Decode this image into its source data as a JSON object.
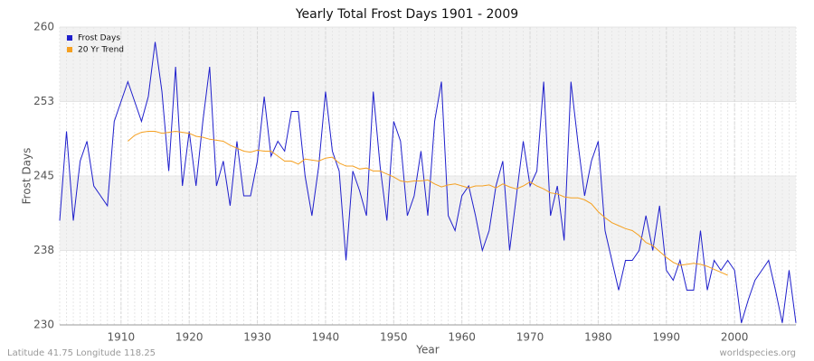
{
  "chart_data": {
    "type": "line",
    "title": "Yearly Total Frost Days 1901 - 2009",
    "x_label": "Year",
    "y_label": "Frost Days",
    "footer_left": "Latitude 41.75 Longitude 118.25",
    "footer_right": "worldspecies.org",
    "legend": "upper left",
    "grid": true,
    "xlim": [
      1901,
      2009
    ],
    "xticks": [
      1910,
      1920,
      1930,
      1940,
      1950,
      1960,
      1970,
      1980,
      1990,
      2000
    ],
    "ylim": [
      230,
      260
    ],
    "yticks": [
      230,
      {
        "value": 237.5,
        "label": "238"
      },
      245,
      {
        "value": 252.5,
        "label": "253"
      },
      260
    ],
    "x": [
      1901,
      1902,
      1903,
      1904,
      1905,
      1906,
      1907,
      1908,
      1909,
      1910,
      1911,
      1912,
      1913,
      1914,
      1915,
      1916,
      1917,
      1918,
      1919,
      1920,
      1921,
      1922,
      1923,
      1924,
      1925,
      1926,
      1927,
      1928,
      1929,
      1930,
      1931,
      1932,
      1933,
      1934,
      1935,
      1936,
      1937,
      1938,
      1939,
      1940,
      1941,
      1942,
      1943,
      1944,
      1945,
      1946,
      1947,
      1948,
      1949,
      1950,
      1951,
      1952,
      1953,
      1954,
      1955,
      1956,
      1957,
      1958,
      1959,
      1960,
      1961,
      1962,
      1963,
      1964,
      1965,
      1966,
      1967,
      1968,
      1969,
      1970,
      1971,
      1972,
      1973,
      1974,
      1975,
      1976,
      1977,
      1978,
      1979,
      1980,
      1981,
      1982,
      1983,
      1984,
      1985,
      1986,
      1987,
      1988,
      1989,
      1990,
      1991,
      1992,
      1993,
      1994,
      1995,
      1996,
      1997,
      1998,
      1999,
      2000,
      2001,
      2002,
      2003,
      2004,
      2005,
      2006,
      2007,
      2008,
      2009
    ],
    "series": [
      {
        "name": "Frost Days",
        "color": "#1f1fcc",
        "values": [
          240.5,
          249.5,
          240.5,
          246.5,
          248.5,
          244,
          243,
          242,
          250.5,
          252.5,
          254.5,
          252.5,
          250.5,
          253,
          258.5,
          253.5,
          245.5,
          256,
          244,
          249.5,
          244,
          250.5,
          256,
          244,
          246.5,
          242,
          248.5,
          243,
          243,
          246.5,
          253,
          247,
          248.5,
          247.5,
          251.5,
          251.5,
          245,
          241,
          246,
          253.5,
          247.5,
          245.5,
          236.5,
          245.5,
          243.5,
          241,
          253.5,
          246,
          240.5,
          250.5,
          248.5,
          241,
          243,
          247.5,
          241,
          250.5,
          254.5,
          241,
          239.5,
          243,
          244,
          241,
          237.5,
          239.5,
          244,
          246.5,
          237.5,
          243,
          248.5,
          244,
          245.5,
          254.5,
          241,
          244,
          238.5,
          254.5,
          248.5,
          243,
          246.5,
          248.5,
          239.5,
          236.5,
          233.5,
          236.5,
          236.5,
          237.5,
          241,
          237.5,
          242,
          235.5,
          234.5,
          236.5,
          233.5,
          233.5,
          239.5,
          233.5,
          236.5,
          235.5,
          236.5,
          235.5,
          230.2,
          232.5,
          234.5,
          235.5,
          236.5,
          233.5,
          230.2,
          235.5,
          230.2
        ]
      },
      {
        "name": "20 Yr Trend",
        "color": "#f5a020",
        "values": [
          null,
          null,
          null,
          null,
          null,
          null,
          null,
          null,
          null,
          null,
          248.5,
          249.1,
          249.4,
          249.5,
          249.5,
          249.3,
          249.4,
          249.5,
          249.4,
          249.3,
          249.0,
          248.9,
          248.7,
          248.6,
          248.5,
          248.1,
          247.8,
          247.5,
          247.4,
          247.6,
          247.5,
          247.5,
          247.0,
          246.5,
          246.5,
          246.2,
          246.7,
          246.6,
          246.5,
          246.8,
          246.9,
          246.3,
          246.0,
          246.0,
          245.7,
          245.8,
          245.5,
          245.5,
          245.2,
          244.9,
          244.5,
          244.4,
          244.5,
          244.5,
          244.6,
          244.2,
          243.9,
          244.1,
          244.2,
          244.0,
          243.8,
          244.0,
          244.0,
          244.1,
          243.8,
          244.2,
          243.9,
          243.7,
          244.0,
          244.4,
          244.0,
          243.7,
          243.3,
          243.2,
          242.9,
          242.8,
          242.8,
          242.6,
          242.2,
          241.4,
          240.8,
          240.3,
          240.0,
          239.7,
          239.5,
          239.0,
          238.3,
          238.0,
          237.4,
          236.8,
          236.3,
          236.0,
          236.1,
          236.2,
          236.1,
          235.9,
          235.6,
          235.3,
          235.0,
          null,
          null,
          null,
          null,
          null,
          null,
          null,
          null,
          null,
          null
        ]
      }
    ]
  }
}
